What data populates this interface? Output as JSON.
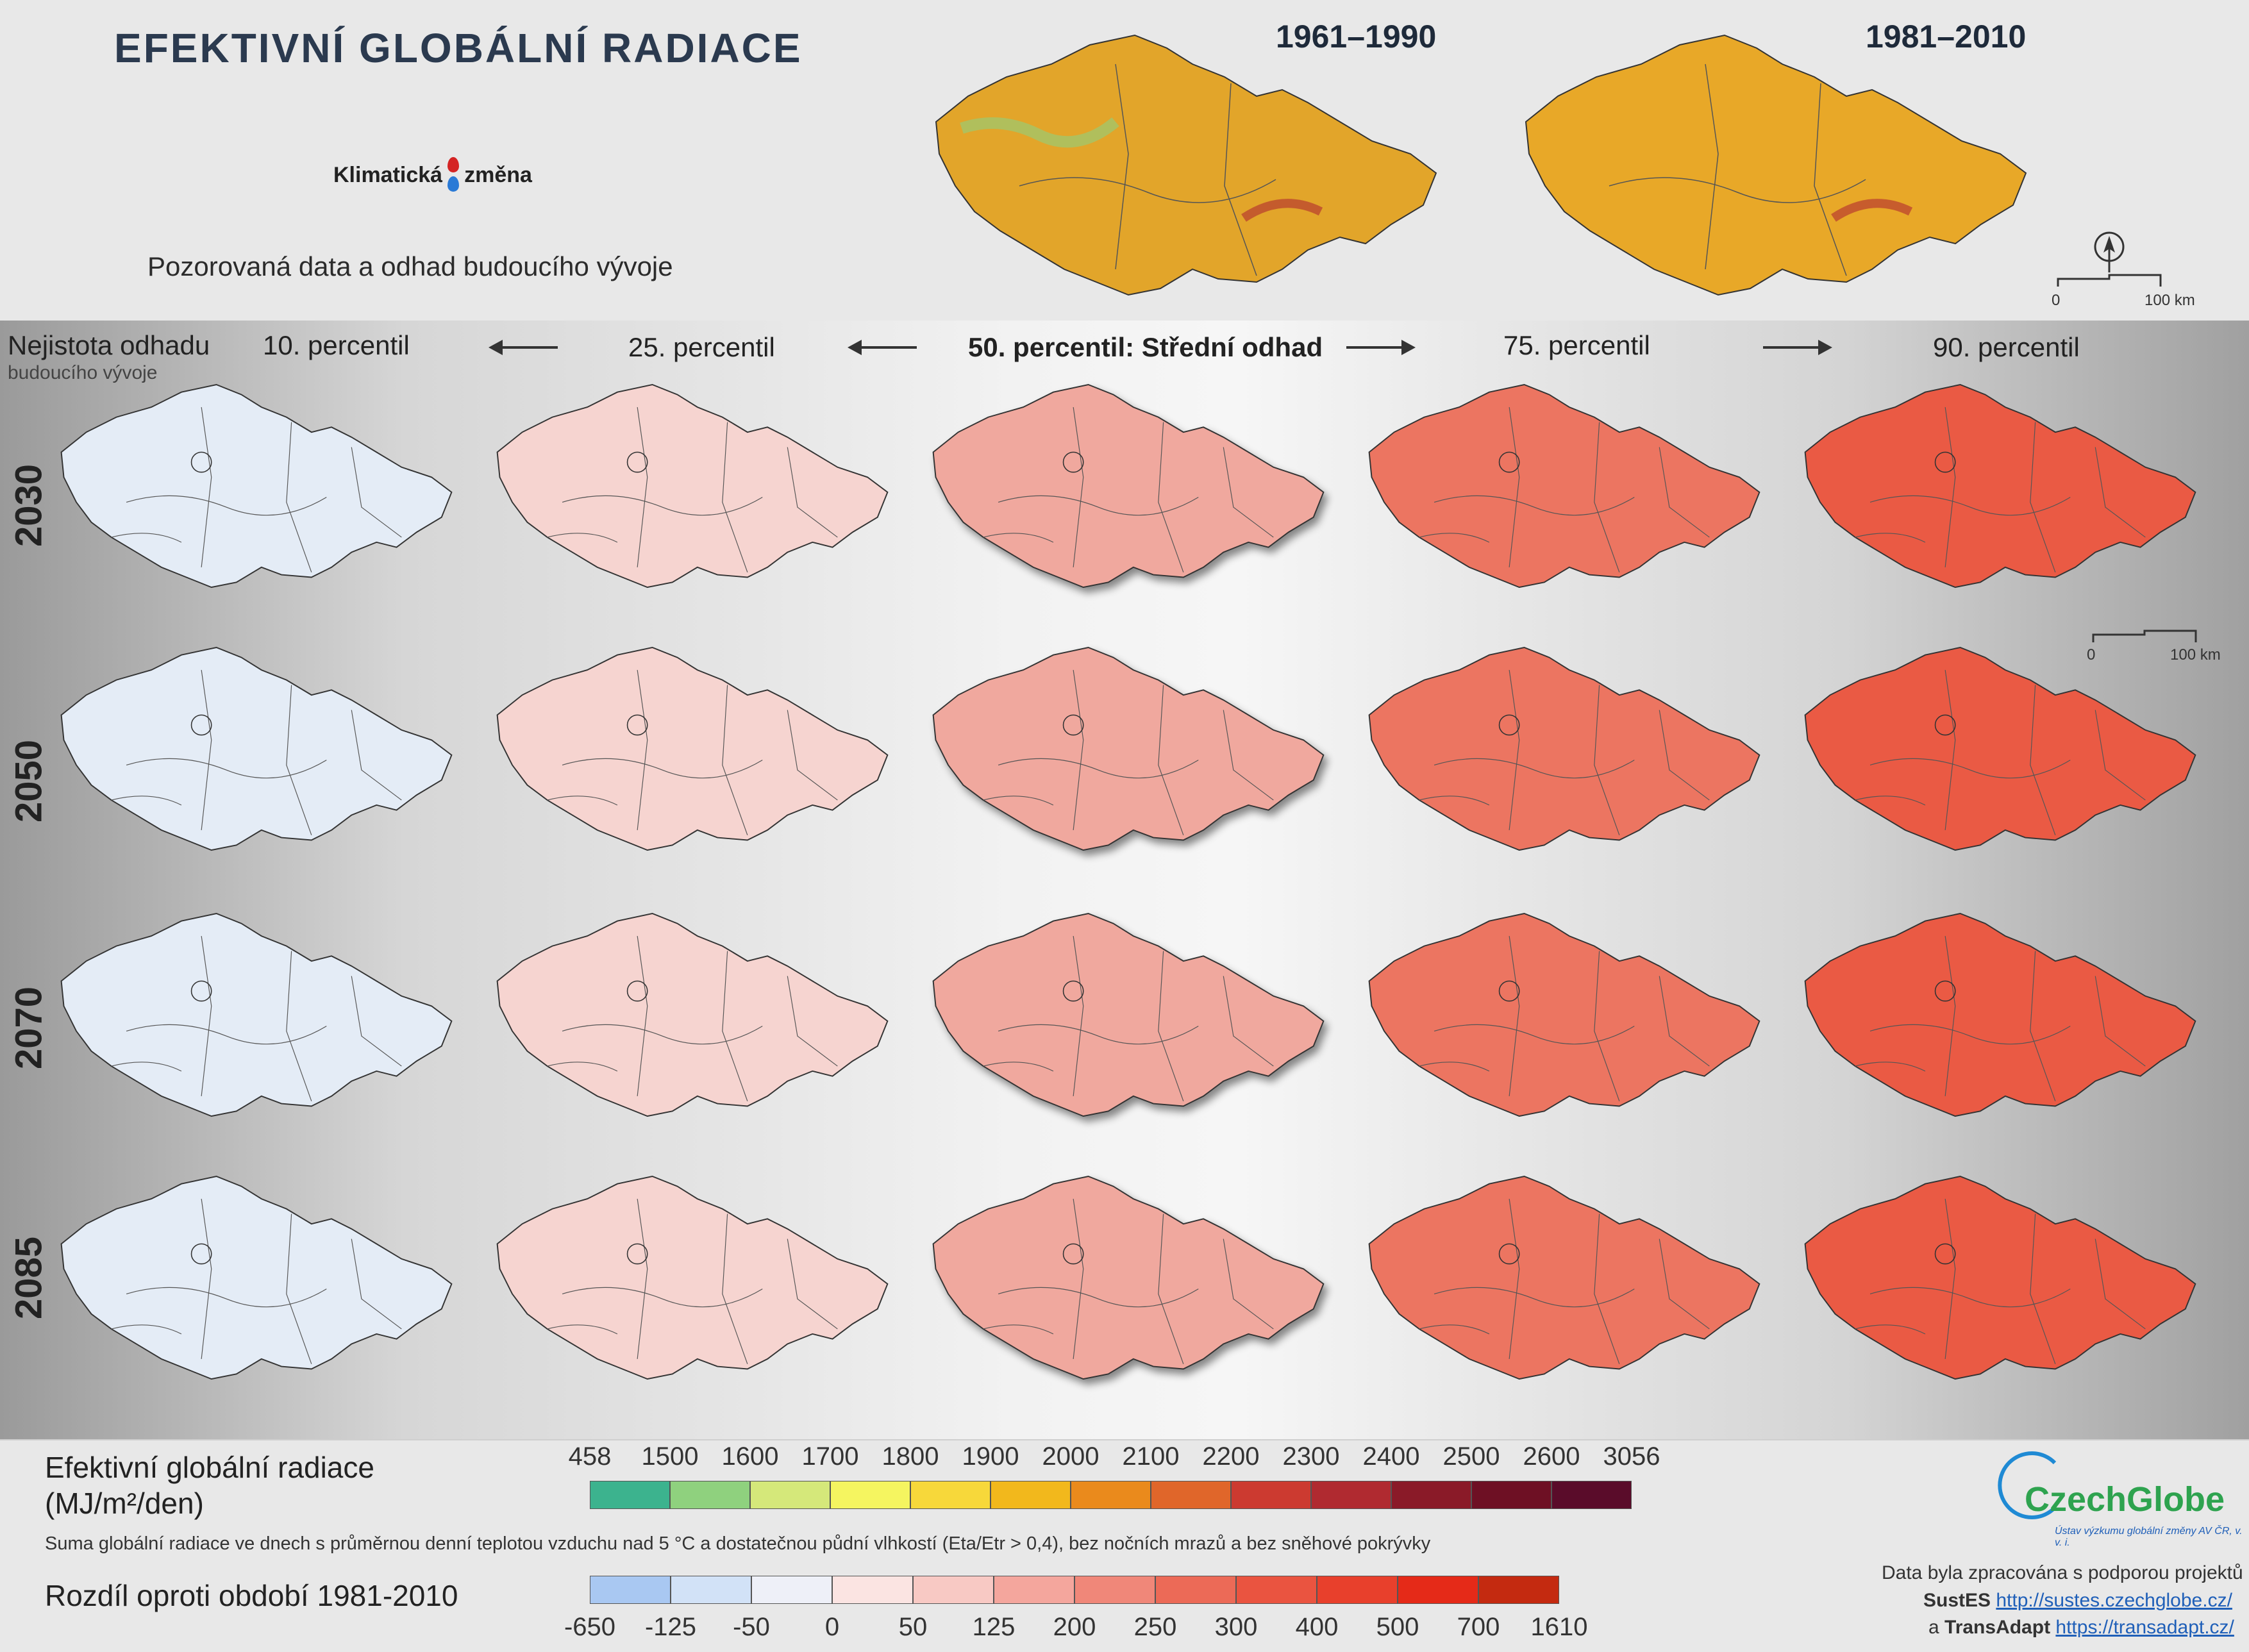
{
  "header": {
    "title": "EFEKTIVNÍ GLOBÁLNÍ RADIACE",
    "logo_left": "Klimatická",
    "logo_right": "změna",
    "subtitle": "Pozorovaná data a odhad budoucího vývoje",
    "period_1": "1961–1990",
    "period_2": "1981–2010",
    "scale_zero": "0",
    "scale_km": "100 km"
  },
  "grid": {
    "uncertainty_label": "Nejistota odhadu",
    "uncertainty_sub": "budoucího vývoje",
    "percentiles": [
      "10. percentil",
      "25. percentil",
      "50. percentil: Střední odhad",
      "75. percentil",
      "90. percentil"
    ],
    "years": [
      "2030",
      "2050",
      "2070",
      "2085"
    ],
    "scale_zero": "0",
    "scale_km": "100 km"
  },
  "legend_absolute": {
    "title": "Efektivní globální radiace",
    "units": "(MJ/m²/den)",
    "ticks": [
      "458",
      "1500",
      "1600",
      "1700",
      "1800",
      "1900",
      "2000",
      "2100",
      "2200",
      "2300",
      "2400",
      "2500",
      "2600",
      "3056"
    ],
    "colors": [
      "#3cb38e",
      "#8fd17e",
      "#d5e87a",
      "#f5f560",
      "#f7d83a",
      "#f2b81c",
      "#ea8a1c",
      "#e0662a",
      "#cc3a30",
      "#b02a30",
      "#8a1a28",
      "#6e1024",
      "#5a0c2a"
    ]
  },
  "legend_description": "Suma globální radiace ve dnech s průměrnou denní teplotou vzduchu nad 5 °C a dostatečnou půdní vlhkostí (Eta/Etr > 0,4), bez nočních mrazů a bez sněhové pokrývky",
  "legend_difference": {
    "title": "Rozdíl oproti období 1981-2010",
    "ticks": [
      "-650",
      "-125",
      "-50",
      "0",
      "50",
      "125",
      "200",
      "250",
      "300",
      "400",
      "500",
      "700",
      "1610"
    ],
    "colors": [
      "#a9c8f2",
      "#d2e2f7",
      "#eef0f8",
      "#fbe4e2",
      "#f8c9c4",
      "#f4a69d",
      "#f08779",
      "#ec6a57",
      "#ea5440",
      "#e8402c",
      "#e52a18",
      "#c42a10"
    ]
  },
  "credits": {
    "org": "CzechGlobe",
    "org_sub": "Ústav výzkumu globální změny AV ČR, v. v. i.",
    "line1": "Data byla zpracována s podporou projektů",
    "project1": "SustES",
    "project1_url": "http://sustes.czechglobe.cz/",
    "and": "a",
    "project2": "TransAdapt",
    "project2_url": "https://transadapt.cz/"
  },
  "map_colors": {
    "column_fill": [
      "#e4ecf6",
      "#f6d4d0",
      "#f0a89e",
      "#ec7561",
      "#ea5a44"
    ],
    "observed_fill": "#e2a52a"
  }
}
